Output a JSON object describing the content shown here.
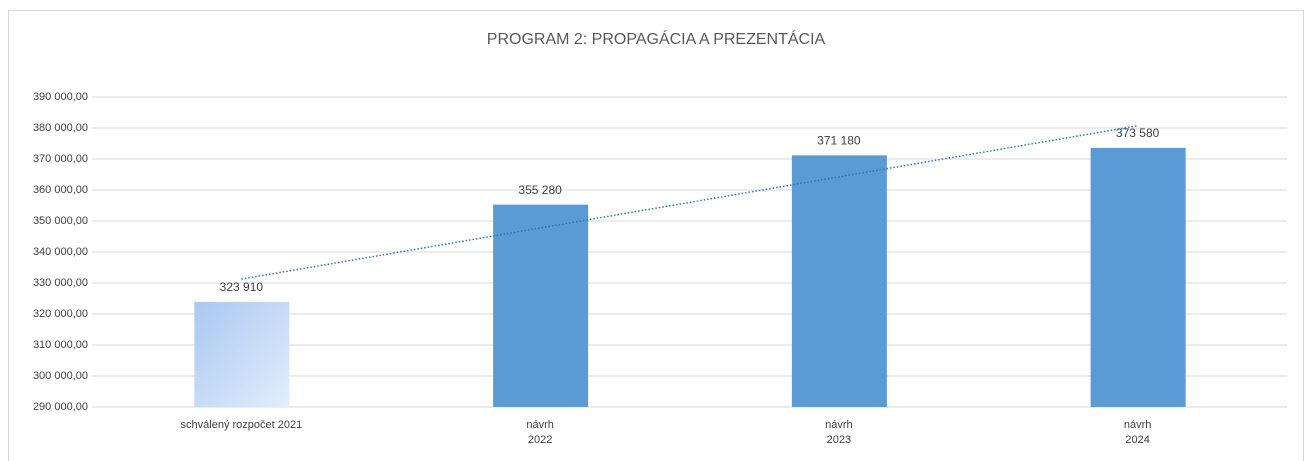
{
  "chart_data": {
    "type": "bar",
    "title": "PROGRAM 2: PROPAGÁCIA A PREZENTÁCIA",
    "categories": [
      "schválený rozpočet 2021",
      "návrh\n2022",
      "návrh\n2023",
      "návrh\n2024"
    ],
    "values": [
      323910,
      355280,
      371180,
      373580
    ],
    "value_labels": [
      "323 910",
      "355 280",
      "371 180",
      "373 580"
    ],
    "colors": [
      "#c3d9f6",
      "#5b9bd5",
      "#5b9bd5",
      "#5b9bd5"
    ],
    "ylim": [
      290000,
      390000
    ],
    "yticks": [
      {
        "value": 290000,
        "label": "290 000,00"
      },
      {
        "value": 300000,
        "label": "300 000,00"
      },
      {
        "value": 310000,
        "label": "310 000,00"
      },
      {
        "value": 320000,
        "label": "320 000,00"
      },
      {
        "value": 330000,
        "label": "330 000,00"
      },
      {
        "value": 340000,
        "label": "340 000,00"
      },
      {
        "value": 350000,
        "label": "350 000,00"
      },
      {
        "value": 360000,
        "label": "360 000,00"
      },
      {
        "value": 370000,
        "label": "370 000,00"
      },
      {
        "value": 380000,
        "label": "380 000,00"
      },
      {
        "value": 390000,
        "label": "390 000,00"
      }
    ],
    "grid": true,
    "trendline": {
      "type": "linear",
      "color": "#2e75b6"
    }
  }
}
